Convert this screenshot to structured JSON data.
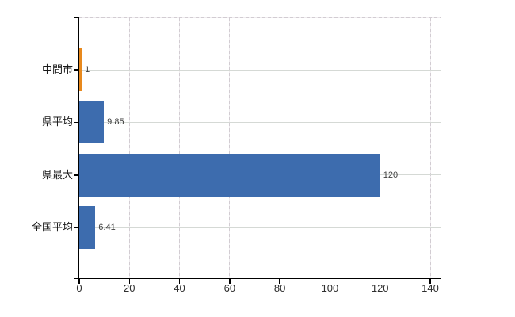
{
  "chart_data": {
    "type": "bar",
    "orientation": "horizontal",
    "title": "",
    "xlabel": "",
    "ylabel": "",
    "categories": [
      "中間市",
      "県平均",
      "県最大",
      "全国平均"
    ],
    "values": [
      1,
      9.85,
      120,
      6.41
    ],
    "value_labels": [
      "1",
      "9.85",
      "120",
      "6.41"
    ],
    "bar_colors": [
      "#e8891d",
      "#3d6cae",
      "#3d6cae",
      "#3d6cae"
    ],
    "highlighted_category": "中間市",
    "xlim": [
      0,
      140
    ],
    "x_ticks": [
      0,
      20,
      40,
      60,
      80,
      100,
      120,
      140
    ],
    "x_tick_labels": [
      "0",
      "20",
      "40",
      "60",
      "80",
      "100",
      "120",
      "140"
    ],
    "grid": true,
    "legend_position": "none",
    "colors": {
      "axis": "#000000",
      "gridline": "#d5d1d5",
      "background": "#ffffff",
      "value_label_text": "#3f3f3f",
      "tick_label_text": "#2e2e2e",
      "category_label_text": "#1a1a1a",
      "default_bar": "#3d6cae",
      "highlight_bar": "#e8891d"
    }
  }
}
